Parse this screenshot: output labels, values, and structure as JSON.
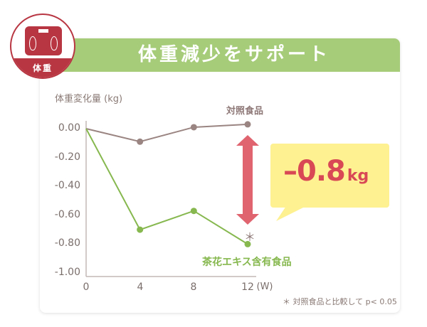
{
  "badge": {
    "label": "体重",
    "icon": "body-scale-icon"
  },
  "header": {
    "title": "体重減少をサポート"
  },
  "colors": {
    "header_bg": "#a6cc79",
    "badge_red": "#b83642",
    "control_line": "#9b8582",
    "test_line": "#86b84f",
    "arrow": "#e06470",
    "bubble_bg": "#fdf192",
    "bubble_text": "#d84955"
  },
  "axes": {
    "ylabel": "体重変化量 (kg)",
    "yticks": [
      "0.00",
      "-0.20",
      "-0.40",
      "-0.60",
      "-0.80",
      "-1.00"
    ],
    "xticks": [
      "0",
      "4",
      "8",
      "12"
    ],
    "xunit": "(W)"
  },
  "series_labels": {
    "control": "対照食品",
    "test": "茶花エキス含有食品"
  },
  "significance_mark": "＊",
  "callout": {
    "value": "–0.8",
    "unit": "kg"
  },
  "footnote": "＊ 対照食品と比較して p< 0.05",
  "chart_data": {
    "type": "line",
    "title": "体重減少をサポート",
    "xlabel": "(W)",
    "ylabel": "体重変化量 (kg)",
    "x": [
      0,
      4,
      8,
      12
    ],
    "ylim": [
      -1.0,
      0.0
    ],
    "yticks": [
      0.0,
      -0.2,
      -0.4,
      -0.6,
      -0.8,
      -1.0
    ],
    "grid": false,
    "series": [
      {
        "name": "対照食品",
        "values": [
          0.0,
          -0.09,
          0.01,
          0.03
        ],
        "color": "#9b8582"
      },
      {
        "name": "茶花エキス含有食品",
        "values": [
          0.0,
          -0.7,
          -0.57,
          -0.8
        ],
        "color": "#86b84f"
      }
    ],
    "annotations": [
      {
        "text": "＊",
        "x": 12,
        "note": "対照食品と比較して p< 0.05"
      },
      {
        "text": "–0.8kg",
        "type": "difference-callout"
      }
    ]
  }
}
